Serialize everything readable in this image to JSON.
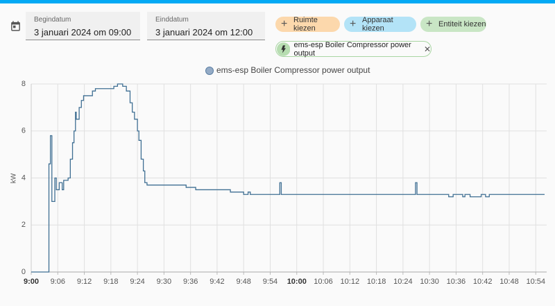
{
  "date_range": {
    "start": {
      "label": "Begindatum",
      "value": "3 januari 2024 om 09:00"
    },
    "end": {
      "label": "Einddatum",
      "value": "3 januari 2024 om 12:00"
    }
  },
  "filters": [
    {
      "label": "Ruimte kiezen"
    },
    {
      "label": "Apparaat kiezen"
    },
    {
      "label": "Entiteit kiezen"
    }
  ],
  "selected_entity": {
    "label": "ems-esp Boiler Compressor power output"
  },
  "chart_data": {
    "type": "line",
    "y_label": "kW",
    "step": true,
    "grid": true,
    "xlim": [
      "9:00",
      "10:56"
    ],
    "xticks": [
      "9:00",
      "9:06",
      "9:12",
      "9:18",
      "9:24",
      "9:30",
      "9:36",
      "9:42",
      "9:48",
      "9:54",
      "10:00",
      "10:06",
      "10:12",
      "10:18",
      "10:24",
      "10:30",
      "10:36",
      "10:42",
      "10:48",
      "10:54"
    ],
    "ylim": [
      0,
      8
    ],
    "yticks": [
      0,
      2,
      4,
      6,
      8
    ],
    "x": [
      "9:00:00",
      "9:04:00",
      "9:04:20",
      "9:04:40",
      "9:05:20",
      "9:05:40",
      "9:06:20",
      "9:07:00",
      "9:07:20",
      "9:08:20",
      "9:08:50",
      "9:09:20",
      "9:09:40",
      "9:10:00",
      "9:10:10",
      "9:10:50",
      "9:11:20",
      "9:11:50",
      "9:13:50",
      "9:14:30",
      "9:18:40",
      "9:19:30",
      "9:20:40",
      "9:21:30",
      "9:22:20",
      "9:22:50",
      "9:23:20",
      "9:24:00",
      "9:24:20",
      "9:24:50",
      "9:25:20",
      "9:25:40",
      "9:26:10",
      "9:35:00",
      "9:37:10",
      "9:45:00",
      "9:48:00",
      "9:49:00",
      "9:49:30",
      "9:56:10",
      "9:56:30",
      "10:26:50",
      "10:27:10",
      "10:34:20",
      "10:35:20",
      "10:37:30",
      "10:38:00",
      "10:39:10",
      "10:41:40",
      "10:42:40",
      "10:43:30",
      "10:56:00"
    ],
    "series": [
      {
        "name": "ems-esp Boiler Compressor power output",
        "color": "#3f6f93",
        "values": [
          0,
          4.6,
          5.8,
          3.0,
          4.0,
          3.5,
          3.8,
          3.5,
          3.9,
          4.0,
          4.8,
          5.5,
          6.0,
          6.8,
          6.5,
          7.0,
          7.3,
          7.5,
          7.7,
          7.8,
          7.9,
          8.0,
          7.9,
          7.7,
          7.2,
          6.8,
          6.5,
          6.0,
          5.6,
          4.8,
          4.3,
          3.8,
          3.7,
          3.6,
          3.5,
          3.4,
          3.3,
          3.4,
          3.3,
          3.8,
          3.3,
          3.8,
          3.3,
          3.2,
          3.3,
          3.2,
          3.3,
          3.2,
          3.3,
          3.2,
          3.3,
          3.3
        ]
      }
    ]
  }
}
